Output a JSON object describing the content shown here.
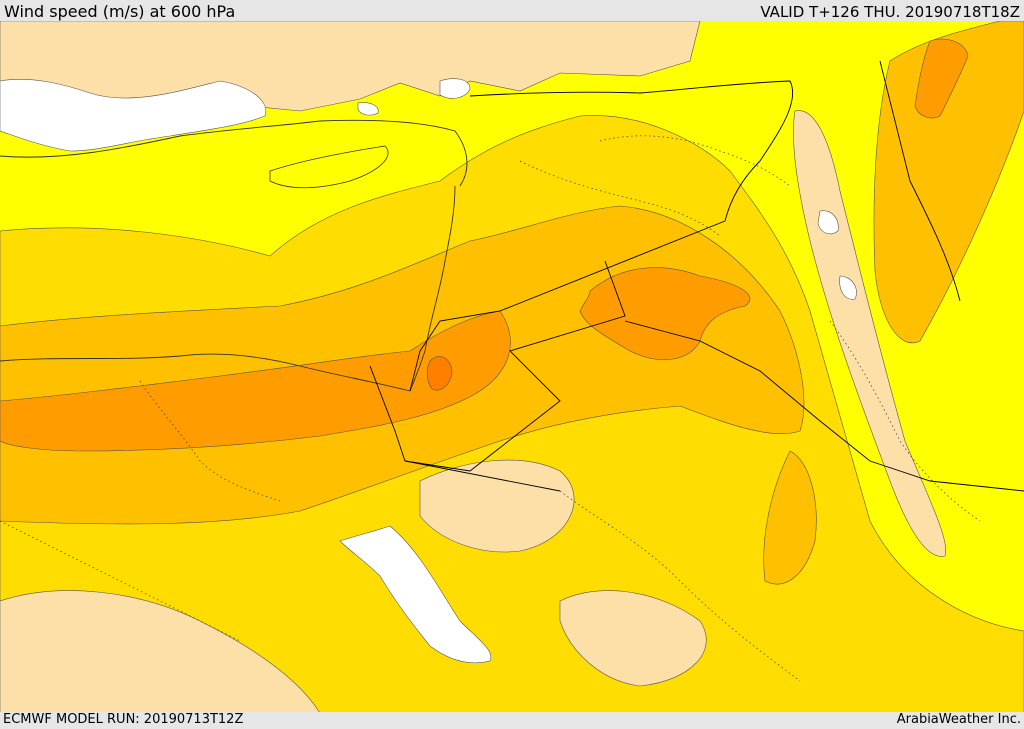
{
  "header": {
    "title": "Wind speed (m/s) at 600 hPa",
    "valid_time": "VALID T+126 THU. 20190718T18Z"
  },
  "footer": {
    "model_run": "ECMWF MODEL RUN: 20190713T12Z",
    "credit": "ArabiaWeather Inc."
  },
  "colors": {
    "sea_white": "#ffffff",
    "band_lightest": "#fde0a8",
    "band_yellow": "#ffff00",
    "band_gold": "#ffdd00",
    "band_amber": "#ffc000",
    "band_orange": "#ff9d00",
    "band_dark_orange": "#ff7d00",
    "border_line": "#000000"
  },
  "map": {
    "variable": "wind speed",
    "level": "600 hPa"
  }
}
